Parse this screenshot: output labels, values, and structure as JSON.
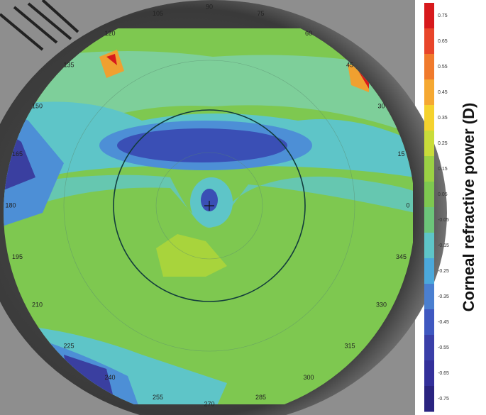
{
  "angle_labels": [
    "0",
    "15",
    "30",
    "45",
    "60",
    "75",
    "90",
    "105",
    "120",
    "135",
    "150",
    "165",
    "180",
    "195",
    "210",
    "225",
    "240",
    "255",
    "270",
    "285",
    "300",
    "315",
    "330",
    "345"
  ],
  "colorbar": {
    "label": "Corneal refractive power (D)",
    "ticks": [
      "0.75",
      "0.65",
      "0.55",
      "0.45",
      "0.35",
      "0.25",
      "0.15",
      "0.05",
      "-0.05",
      "-0.15",
      "-0.25",
      "-0.35",
      "-0.45",
      "-0.55",
      "-0.65",
      "-0.75"
    ]
  }
}
